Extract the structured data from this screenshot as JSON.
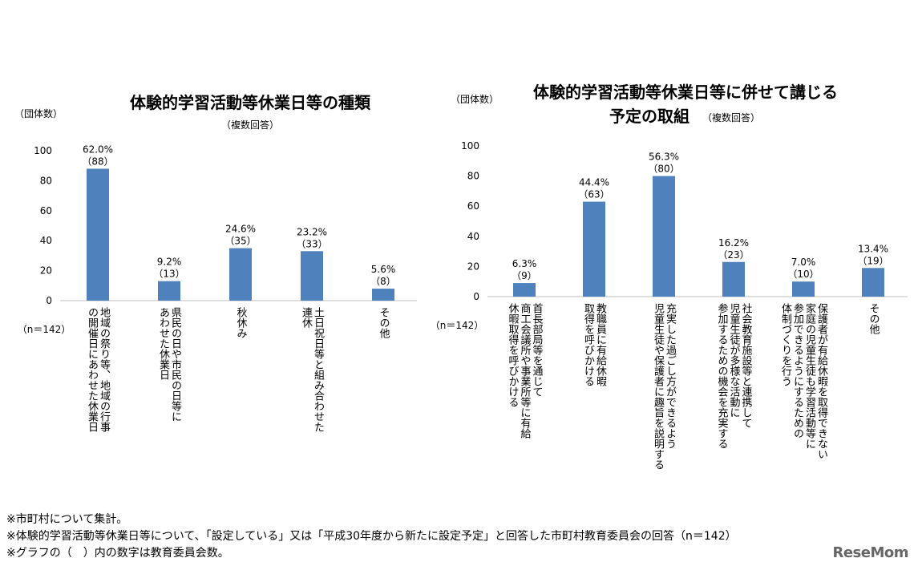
{
  "charts": [
    {
      "id": "left",
      "title": "体験的学習活動等休業日等の種類",
      "title_line2": "",
      "subtitle": "（複数回答）",
      "unit": "（団体数）",
      "n_label": "（n＝142）"
    },
    {
      "id": "right",
      "title": "体験的学習活動等休業日等に併せて講じる",
      "title_line2": "予定の取組",
      "subtitle": "（複数回答）",
      "unit": "（団体数）",
      "n_label": "（n＝142）"
    }
  ],
  "chart_data": [
    {
      "type": "bar",
      "title": "体験的学習活動等休業日等の種類",
      "subtitle": "（複数回答）",
      "ylabel": "（団体数）",
      "ylim": [
        0,
        100
      ],
      "yticks": [
        0,
        20,
        40,
        60,
        80,
        100
      ],
      "grid": false,
      "bar_color": "#4f81bd",
      "categories": [
        [
          "地域の祭り等、地域の行事",
          "の開催日にあわせた休業日"
        ],
        [
          "県民の日や市民の日等に",
          "あわせた休業日"
        ],
        [
          "秋休み"
        ],
        [
          "土日祝日等と組み合わせた",
          "連休"
        ],
        [
          "その他"
        ]
      ],
      "values": [
        88,
        13,
        35,
        33,
        8
      ],
      "percent_labels": [
        "62.0%",
        "9.2%",
        "24.6%",
        "23.2%",
        "5.6%"
      ],
      "count_labels": [
        "（88）",
        "（13）",
        "（35）",
        "（33）",
        "（8）"
      ]
    },
    {
      "type": "bar",
      "title": "体験的学習活動等休業日等に併せて講じる予定の取組",
      "subtitle": "（複数回答）",
      "ylabel": "（団体数）",
      "ylim": [
        0,
        100
      ],
      "yticks": [
        0,
        20,
        40,
        60,
        80,
        100
      ],
      "grid": false,
      "bar_color": "#4f81bd",
      "categories": [
        [
          "首長部局等を通じて",
          "商工会議所や事業所等に有給",
          "休暇取得を呼びかける"
        ],
        [
          "教職員に有給休暇",
          "取得を呼びかける"
        ],
        [
          "充実した過ごし方ができるよう",
          "児童生徒や保護者に趣旨を説明する"
        ],
        [
          "社会教育施設等と連携して",
          "児童生徒が多様な活動に",
          "参加するための機会を充実する"
        ],
        [
          "保護者が有給休暇を取得できない",
          "家庭の児童生徒も学習活動等に",
          "参加できるようにするための",
          "体制づくりを行う"
        ],
        [
          "その他"
        ]
      ],
      "values": [
        9,
        63,
        80,
        23,
        10,
        19
      ],
      "percent_labels": [
        "6.3%",
        "44.4%",
        "56.3%",
        "16.2%",
        "7.0%",
        "13.4%"
      ],
      "count_labels": [
        "（9）",
        "（63）",
        "（80）",
        "（23）",
        "（10）",
        "（19）"
      ]
    }
  ],
  "footnotes": [
    "※市町村について集計。",
    "※体験的学習活動等休業日等について、「設定している」又は「平成30年度から新たに設定予定」と回答した市町村教育委員会の回答（n＝142）",
    "※グラフの（　）内の数字は教育委員会数。"
  ],
  "logo": "ReseMom"
}
